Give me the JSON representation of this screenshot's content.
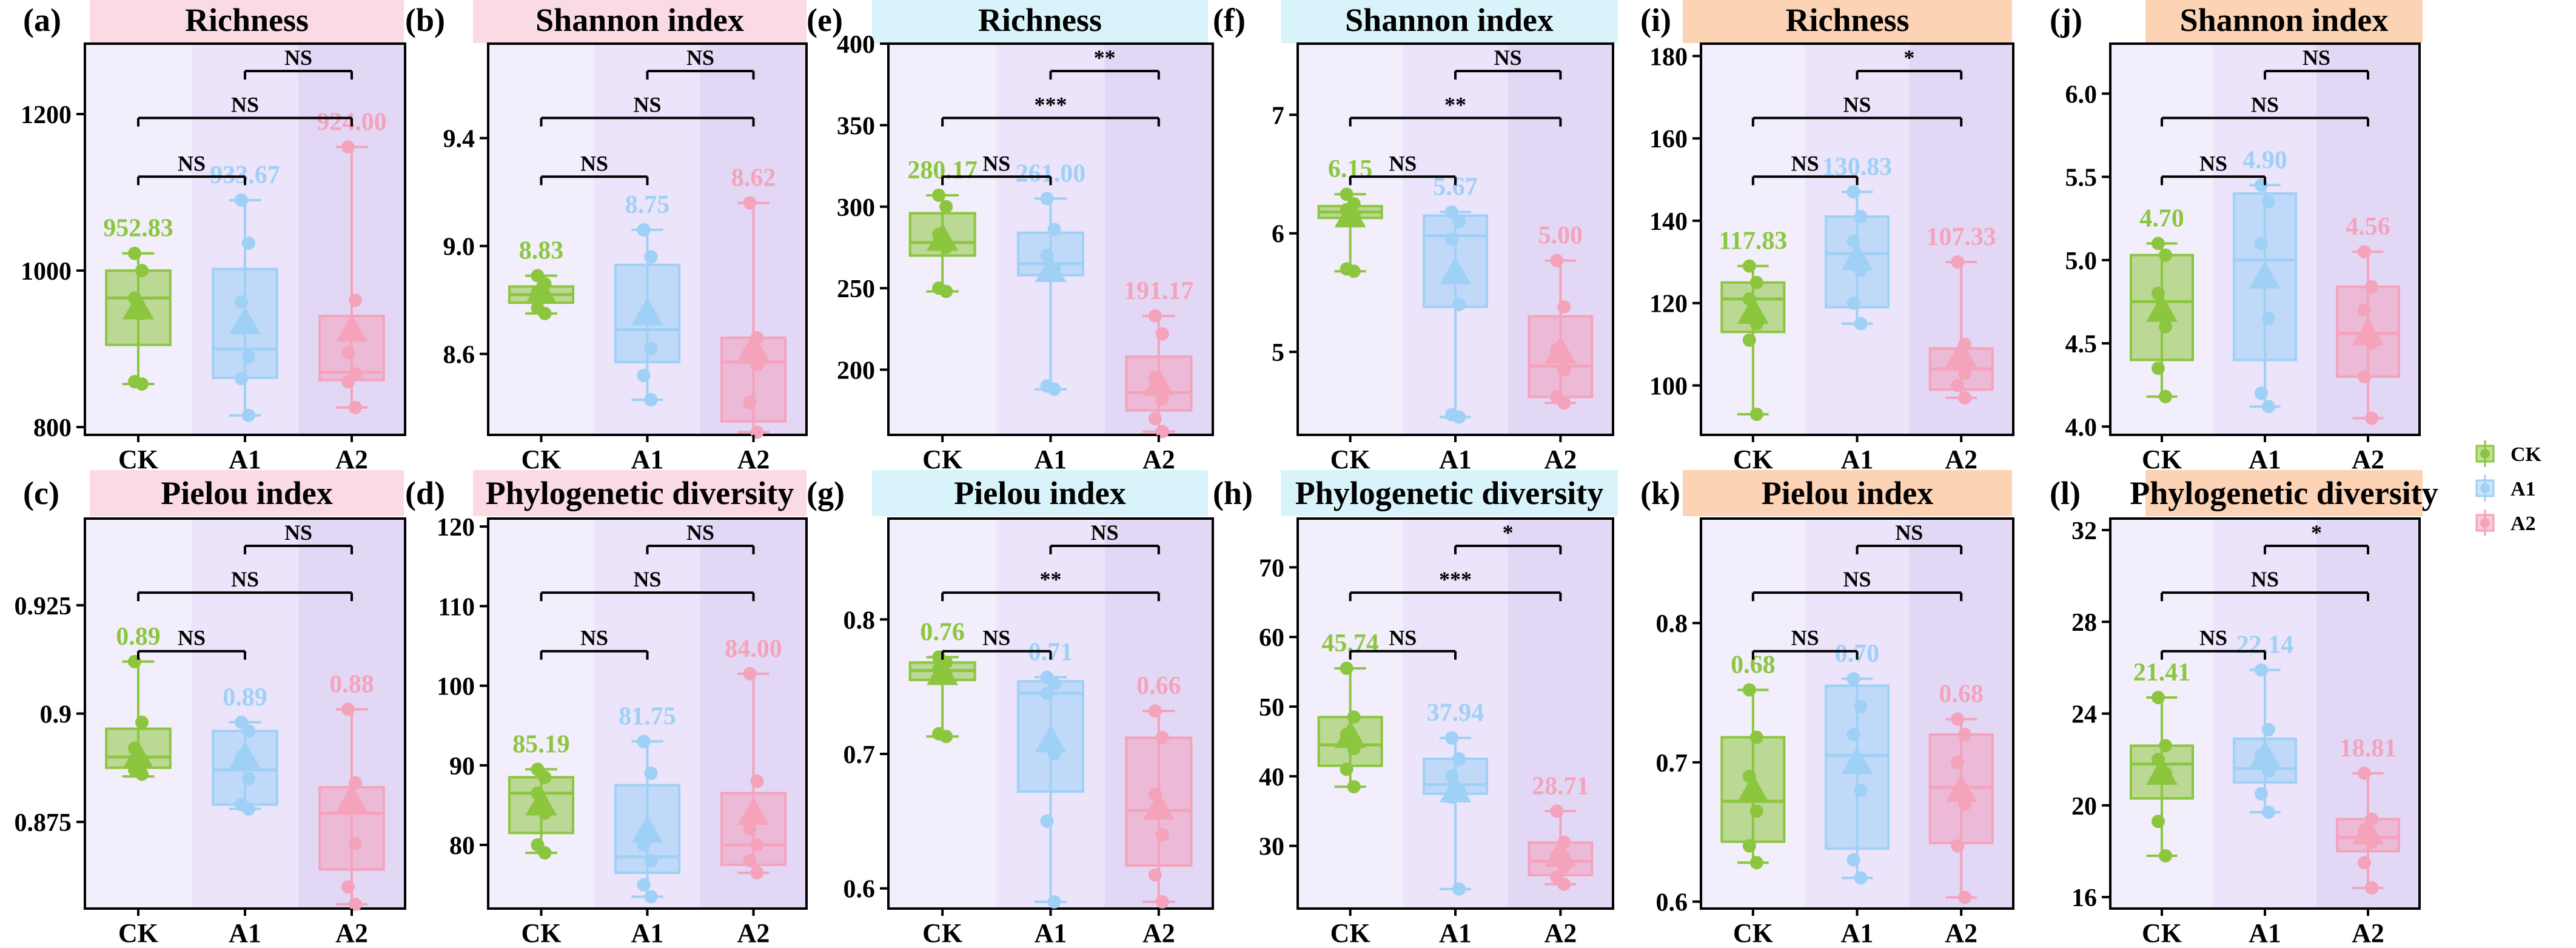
{
  "colors": {
    "CK": "#8cc63f",
    "A1": "#9fd0f5",
    "A2": "#f4a3bb",
    "bgCK": "#f3eefc",
    "bgA1": "#ebe4fa",
    "bgA2": "#e2d8f5",
    "hdrPink": "#fbdbe3",
    "hdrCyan": "#d8f4fa",
    "hdrPeach": "#fcd3b5"
  },
  "groups": [
    "CK",
    "A1",
    "A2"
  ],
  "legend": {
    "items": [
      {
        "label": "CK",
        "color": "#8cc63f"
      },
      {
        "label": "A1",
        "color": "#9fd0f5"
      },
      {
        "label": "A2",
        "color": "#f4a3bb"
      }
    ]
  },
  "chart_data": [
    {
      "letter": "(a)",
      "title": "Richness",
      "type": "box",
      "ylim": [
        790,
        1290
      ],
      "ticks": [
        800,
        1000,
        1200
      ],
      "boxes": [
        {
          "group": "CK",
          "q1": 905,
          "median": 965,
          "q3": 1000,
          "min": 855,
          "max": 1022,
          "mean": 952.83,
          "label": "952.83",
          "points": [
            1022,
            1000,
            965,
            945,
            858,
            855
          ]
        },
        {
          "group": "A1",
          "q1": 863,
          "median": 900,
          "q3": 1002,
          "min": 815,
          "max": 1090,
          "mean": 933.67,
          "label": "933.67",
          "points": [
            1090,
            1035,
            960,
            890,
            862,
            815
          ]
        },
        {
          "group": "A2",
          "q1": 860,
          "median": 870,
          "q3": 942,
          "min": 825,
          "max": 1158,
          "mean": 924.0,
          "label": "924.00",
          "points": [
            1158,
            962,
            895,
            868,
            858,
            825
          ]
        }
      ],
      "sig": [
        {
          "from": "CK",
          "to": "A1",
          "label": "NS"
        },
        {
          "from": "CK",
          "to": "A2",
          "label": "NS"
        },
        {
          "from": "A1",
          "to": "A2",
          "label": "NS"
        }
      ]
    },
    {
      "letter": "(b)",
      "title": "Shannon index",
      "type": "box",
      "ylim": [
        8.3,
        9.75
      ],
      "ticks": [
        8.6,
        9.0,
        9.4
      ],
      "boxes": [
        {
          "group": "CK",
          "q1": 8.79,
          "median": 8.82,
          "q3": 8.85,
          "min": 8.75,
          "max": 8.89,
          "mean": 8.83,
          "label": "8.83",
          "points": [
            8.89,
            8.86,
            8.83,
            8.81,
            8.77,
            8.75
          ]
        },
        {
          "group": "A1",
          "q1": 8.57,
          "median": 8.69,
          "q3": 8.93,
          "min": 8.43,
          "max": 9.06,
          "mean": 8.75,
          "label": "8.75",
          "points": [
            9.06,
            8.96,
            8.74,
            8.62,
            8.52,
            8.43
          ]
        },
        {
          "group": "A2",
          "q1": 8.35,
          "median": 8.57,
          "q3": 8.66,
          "min": 8.31,
          "max": 9.16,
          "mean": 8.62,
          "label": "8.62",
          "points": [
            9.16,
            8.66,
            8.61,
            8.56,
            8.42,
            8.31
          ]
        }
      ],
      "sig": [
        {
          "from": "CK",
          "to": "A1",
          "label": "NS"
        },
        {
          "from": "CK",
          "to": "A2",
          "label": "NS"
        },
        {
          "from": "A1",
          "to": "A2",
          "label": "NS"
        }
      ]
    },
    {
      "letter": "(e)",
      "title": "Richness",
      "type": "box",
      "ylim": [
        160,
        400
      ],
      "ticks": [
        200,
        250,
        300,
        350,
        400
      ],
      "boxes": [
        {
          "group": "CK",
          "q1": 270,
          "median": 278,
          "q3": 296,
          "min": 248,
          "max": 307,
          "mean": 280.17,
          "label": "280.17",
          "points": [
            307,
            300,
            283,
            275,
            250,
            248
          ]
        },
        {
          "group": "A1",
          "q1": 258,
          "median": 265,
          "q3": 284,
          "min": 188,
          "max": 305,
          "mean": 261.0,
          "label": "261.00",
          "points": [
            305,
            286,
            270,
            262,
            190,
            188
          ]
        },
        {
          "group": "A2",
          "q1": 175,
          "median": 186,
          "q3": 208,
          "min": 162,
          "max": 233,
          "mean": 191.17,
          "label": "191.17",
          "points": [
            233,
            222,
            195,
            182,
            170,
            162
          ]
        }
      ],
      "sig": [
        {
          "from": "CK",
          "to": "A1",
          "label": "NS"
        },
        {
          "from": "CK",
          "to": "A2",
          "label": "***"
        },
        {
          "from": "A1",
          "to": "A2",
          "label": "**"
        }
      ]
    },
    {
      "letter": "(f)",
      "title": "Shannon index",
      "type": "box",
      "ylim": [
        4.3,
        7.6
      ],
      "ticks": [
        5,
        6,
        7
      ],
      "boxes": [
        {
          "group": "CK",
          "q1": 6.13,
          "median": 6.18,
          "q3": 6.23,
          "min": 5.68,
          "max": 6.33,
          "mean": 6.15,
          "label": "6.15",
          "points": [
            6.33,
            6.25,
            6.2,
            6.15,
            5.7,
            5.68
          ]
        },
        {
          "group": "A1",
          "q1": 5.38,
          "median": 5.98,
          "q3": 6.15,
          "min": 4.45,
          "max": 6.18,
          "mean": 5.67,
          "label": "5.67",
          "points": [
            6.18,
            6.1,
            5.95,
            5.4,
            4.47,
            4.45
          ]
        },
        {
          "group": "A2",
          "q1": 4.62,
          "median": 4.88,
          "q3": 5.3,
          "min": 4.57,
          "max": 5.77,
          "mean": 5.0,
          "label": "5.00",
          "points": [
            5.77,
            5.38,
            5.02,
            4.85,
            4.62,
            4.57
          ]
        }
      ],
      "sig": [
        {
          "from": "CK",
          "to": "A1",
          "label": "NS"
        },
        {
          "from": "CK",
          "to": "A2",
          "label": "**"
        },
        {
          "from": "A1",
          "to": "A2",
          "label": "NS"
        }
      ]
    },
    {
      "letter": "(i)",
      "title": "Richness",
      "type": "box",
      "ylim": [
        88,
        183
      ],
      "ticks": [
        100,
        120,
        140,
        160,
        180
      ],
      "boxes": [
        {
          "group": "CK",
          "q1": 113,
          "median": 121,
          "q3": 125,
          "min": 93,
          "max": 129,
          "mean": 117.83,
          "label": "117.83",
          "points": [
            129,
            125,
            121,
            115,
            111,
            93
          ]
        },
        {
          "group": "A1",
          "q1": 119,
          "median": 132,
          "q3": 141,
          "min": 115,
          "max": 147,
          "mean": 130.83,
          "label": "130.83",
          "points": [
            147,
            141,
            135,
            128,
            120,
            115
          ]
        },
        {
          "group": "A2",
          "q1": 99,
          "median": 104,
          "q3": 109,
          "min": 97,
          "max": 130,
          "mean": 107.33,
          "label": "107.33",
          "points": [
            130,
            110,
            106,
            103,
            100,
            97
          ]
        }
      ],
      "sig": [
        {
          "from": "CK",
          "to": "A1",
          "label": "NS"
        },
        {
          "from": "CK",
          "to": "A2",
          "label": "NS"
        },
        {
          "from": "A1",
          "to": "A2",
          "label": "*"
        }
      ]
    },
    {
      "letter": "(j)",
      "title": "Shannon index",
      "type": "box",
      "ylim": [
        3.95,
        6.3
      ],
      "ticks": [
        4.0,
        4.5,
        5.0,
        5.5,
        6.0
      ],
      "boxes": [
        {
          "group": "CK",
          "q1": 4.4,
          "median": 4.75,
          "q3": 5.03,
          "min": 4.18,
          "max": 5.1,
          "mean": 4.7,
          "label": "4.70",
          "points": [
            5.1,
            5.03,
            4.8,
            4.6,
            4.35,
            4.18
          ]
        },
        {
          "group": "A1",
          "q1": 4.4,
          "median": 5.0,
          "q3": 5.4,
          "min": 4.12,
          "max": 5.45,
          "mean": 4.9,
          "label": "4.90",
          "points": [
            5.45,
            5.35,
            5.1,
            4.65,
            4.2,
            4.12
          ]
        },
        {
          "group": "A2",
          "q1": 4.3,
          "median": 4.56,
          "q3": 4.84,
          "min": 4.05,
          "max": 5.05,
          "mean": 4.56,
          "label": "4.56",
          "points": [
            5.05,
            4.84,
            4.7,
            4.5,
            4.3,
            4.05
          ]
        }
      ],
      "sig": [
        {
          "from": "CK",
          "to": "A1",
          "label": "NS"
        },
        {
          "from": "CK",
          "to": "A2",
          "label": "NS"
        },
        {
          "from": "A1",
          "to": "A2",
          "label": "NS"
        }
      ]
    },
    {
      "letter": "(c)",
      "title": "Pielou index",
      "type": "box",
      "ylim": [
        0.855,
        0.945
      ],
      "ticks": [
        0.875,
        0.9,
        0.925
      ],
      "boxes": [
        {
          "group": "CK",
          "q1": 0.8875,
          "median": 0.89,
          "q3": 0.8965,
          "min": 0.8855,
          "max": 0.912,
          "mean": 0.89,
          "label": "0.89",
          "points": [
            0.912,
            0.898,
            0.892,
            0.889,
            0.887,
            0.886
          ]
        },
        {
          "group": "A1",
          "q1": 0.879,
          "median": 0.887,
          "q3": 0.896,
          "min": 0.878,
          "max": 0.898,
          "mean": 0.89,
          "label": "0.89",
          "points": [
            0.898,
            0.896,
            0.89,
            0.885,
            0.879,
            0.878
          ]
        },
        {
          "group": "A2",
          "q1": 0.864,
          "median": 0.877,
          "q3": 0.883,
          "min": 0.856,
          "max": 0.901,
          "mean": 0.88,
          "label": "0.88",
          "points": [
            0.901,
            0.884,
            0.878,
            0.87,
            0.86,
            0.856
          ]
        }
      ],
      "sig": [
        {
          "from": "CK",
          "to": "A1",
          "label": "NS"
        },
        {
          "from": "CK",
          "to": "A2",
          "label": "NS"
        },
        {
          "from": "A1",
          "to": "A2",
          "label": "NS"
        }
      ]
    },
    {
      "letter": "(d)",
      "title": "Phylogenetic diversity",
      "type": "box",
      "ylim": [
        72,
        121
      ],
      "ticks": [
        80,
        90,
        100,
        110,
        120
      ],
      "boxes": [
        {
          "group": "CK",
          "q1": 81.5,
          "median": 86.5,
          "q3": 88.5,
          "min": 79,
          "max": 89.5,
          "mean": 85.19,
          "label": "85.19",
          "points": [
            89.5,
            88.5,
            86.5,
            84,
            80,
            79
          ]
        },
        {
          "group": "A1",
          "q1": 76.5,
          "median": 78.5,
          "q3": 87.5,
          "min": 73.5,
          "max": 93,
          "mean": 81.75,
          "label": "81.75",
          "points": [
            93,
            89,
            80,
            78,
            75,
            73.5
          ]
        },
        {
          "group": "A2",
          "q1": 77.5,
          "median": 80,
          "q3": 86.5,
          "min": 76.5,
          "max": 101.5,
          "mean": 84.0,
          "label": "84.00",
          "points": [
            101.5,
            88,
            82,
            80,
            78,
            76.5
          ]
        }
      ],
      "sig": [
        {
          "from": "CK",
          "to": "A1",
          "label": "NS"
        },
        {
          "from": "CK",
          "to": "A2",
          "label": "NS"
        },
        {
          "from": "A1",
          "to": "A2",
          "label": "NS"
        }
      ]
    },
    {
      "letter": "(g)",
      "title": "Pielou index",
      "type": "box",
      "ylim": [
        0.585,
        0.875
      ],
      "ticks": [
        0.6,
        0.7,
        0.8
      ],
      "boxes": [
        {
          "group": "CK",
          "q1": 0.755,
          "median": 0.762,
          "q3": 0.768,
          "min": 0.713,
          "max": 0.772,
          "mean": 0.76,
          "label": "0.76",
          "points": [
            0.772,
            0.768,
            0.763,
            0.758,
            0.715,
            0.713
          ]
        },
        {
          "group": "A1",
          "q1": 0.672,
          "median": 0.745,
          "q3": 0.754,
          "min": 0.59,
          "max": 0.757,
          "mean": 0.71,
          "label": "0.71",
          "points": [
            0.757,
            0.752,
            0.745,
            0.7,
            0.65,
            0.59
          ]
        },
        {
          "group": "A2",
          "q1": 0.617,
          "median": 0.658,
          "q3": 0.712,
          "min": 0.59,
          "max": 0.732,
          "mean": 0.66,
          "label": "0.66",
          "points": [
            0.732,
            0.712,
            0.67,
            0.64,
            0.61,
            0.59
          ]
        }
      ],
      "sig": [
        {
          "from": "CK",
          "to": "A1",
          "label": "NS"
        },
        {
          "from": "CK",
          "to": "A2",
          "label": "**"
        },
        {
          "from": "A1",
          "to": "A2",
          "label": "NS"
        }
      ]
    },
    {
      "letter": "(h)",
      "title": "Phylogenetic diversity",
      "type": "box",
      "ylim": [
        21,
        77
      ],
      "ticks": [
        30,
        40,
        50,
        60,
        70
      ],
      "boxes": [
        {
          "group": "CK",
          "q1": 41.5,
          "median": 44.5,
          "q3": 48.5,
          "min": 38.5,
          "max": 55.5,
          "mean": 45.74,
          "label": "45.74",
          "points": [
            55.5,
            48.5,
            46,
            44,
            41,
            38.5
          ]
        },
        {
          "group": "A1",
          "q1": 37.5,
          "median": 38.8,
          "q3": 42.5,
          "min": 23.8,
          "max": 45.5,
          "mean": 37.94,
          "label": "37.94",
          "points": [
            45.5,
            42.5,
            40,
            38,
            37,
            23.8
          ]
        },
        {
          "group": "A2",
          "q1": 25.8,
          "median": 27.8,
          "q3": 30.5,
          "min": 24.5,
          "max": 35,
          "mean": 28.71,
          "label": "28.71",
          "points": [
            35,
            30.5,
            28.5,
            27,
            25.5,
            24.5
          ]
        }
      ],
      "sig": [
        {
          "from": "CK",
          "to": "A1",
          "label": "NS"
        },
        {
          "from": "CK",
          "to": "A2",
          "label": "***"
        },
        {
          "from": "A1",
          "to": "A2",
          "label": "*"
        }
      ]
    },
    {
      "letter": "(k)",
      "title": "Pielou index",
      "type": "box",
      "ylim": [
        0.595,
        0.875
      ],
      "ticks": [
        0.6,
        0.7,
        0.8
      ],
      "boxes": [
        {
          "group": "CK",
          "q1": 0.643,
          "median": 0.672,
          "q3": 0.718,
          "min": 0.628,
          "max": 0.752,
          "mean": 0.68,
          "label": "0.68",
          "points": [
            0.752,
            0.718,
            0.69,
            0.665,
            0.64,
            0.628
          ]
        },
        {
          "group": "A1",
          "q1": 0.638,
          "median": 0.705,
          "q3": 0.755,
          "min": 0.617,
          "max": 0.76,
          "mean": 0.7,
          "label": "0.70",
          "points": [
            0.76,
            0.74,
            0.72,
            0.68,
            0.63,
            0.617
          ]
        },
        {
          "group": "A2",
          "q1": 0.642,
          "median": 0.682,
          "q3": 0.72,
          "min": 0.603,
          "max": 0.731,
          "mean": 0.68,
          "label": "0.68",
          "points": [
            0.731,
            0.72,
            0.7,
            0.67,
            0.64,
            0.603
          ]
        }
      ],
      "sig": [
        {
          "from": "CK",
          "to": "A1",
          "label": "NS"
        },
        {
          "from": "CK",
          "to": "A2",
          "label": "NS"
        },
        {
          "from": "A1",
          "to": "A2",
          "label": "NS"
        }
      ]
    },
    {
      "letter": "(l)",
      "title": "Phylogenetic diversity",
      "type": "box",
      "ylim": [
        15.5,
        32.5
      ],
      "ticks": [
        16,
        20,
        24,
        28,
        32
      ],
      "boxes": [
        {
          "group": "CK",
          "q1": 20.3,
          "median": 21.8,
          "q3": 22.6,
          "min": 17.8,
          "max": 24.7,
          "mean": 21.41,
          "label": "21.41",
          "points": [
            24.7,
            22.6,
            22,
            21.4,
            19.3,
            17.8
          ]
        },
        {
          "group": "A1",
          "q1": 21.0,
          "median": 21.6,
          "q3": 22.9,
          "min": 19.7,
          "max": 25.9,
          "mean": 22.14,
          "label": "22.14",
          "points": [
            25.9,
            23.3,
            22.2,
            21.5,
            20.5,
            19.7
          ]
        },
        {
          "group": "A2",
          "q1": 18.0,
          "median": 18.6,
          "q3": 19.4,
          "min": 16.4,
          "max": 21.4,
          "mean": 18.81,
          "label": "18.81",
          "points": [
            21.4,
            19.4,
            18.9,
            18.4,
            17.5,
            16.4
          ]
        }
      ],
      "sig": [
        {
          "from": "CK",
          "to": "A1",
          "label": "NS"
        },
        {
          "from": "CK",
          "to": "A2",
          "label": "NS"
        },
        {
          "from": "A1",
          "to": "A2",
          "label": "*"
        }
      ]
    }
  ]
}
